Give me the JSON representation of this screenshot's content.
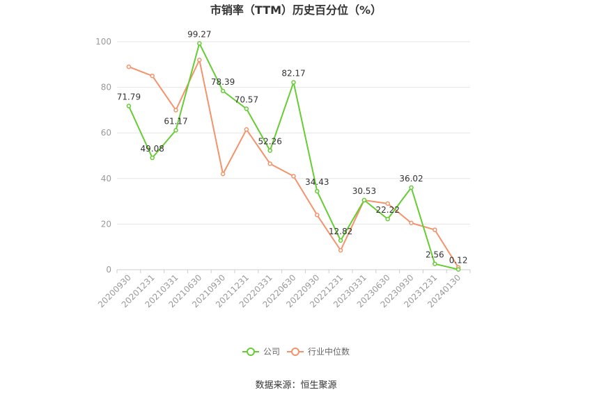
{
  "chart_data": {
    "type": "line",
    "title": "市销率（TTM）历史百分位（%）",
    "categories": [
      "20200930",
      "20201231",
      "20210331",
      "20210630",
      "20210930",
      "20211231",
      "20220331",
      "20220630",
      "20220930",
      "20221231",
      "20230331",
      "20230630",
      "20230930",
      "20231231",
      "20240130"
    ],
    "series": [
      {
        "name": "公司",
        "color": "#66cc33",
        "values": [
          71.79,
          49.08,
          61.17,
          99.27,
          78.39,
          70.57,
          52.26,
          82.17,
          34.43,
          12.82,
          30.53,
          22.22,
          36.02,
          2.56,
          0.12
        ],
        "labels": [
          "71.79",
          "49.08",
          "61.17",
          "99.27",
          "78.39",
          "70.57",
          "52.26",
          "82.17",
          "34.43",
          "12.82",
          "30.53",
          "22.22",
          "36.02",
          "2.56",
          "0.12"
        ]
      },
      {
        "name": "行业中位数",
        "color": "#f4936b",
        "values": [
          89,
          85,
          70,
          92,
          42,
          61.5,
          46.5,
          41,
          24,
          8.5,
          30.5,
          29,
          20.5,
          17.5,
          1
        ]
      }
    ],
    "ylim": [
      0,
      100
    ],
    "yticks": [
      "0",
      "20",
      "40",
      "60",
      "80",
      "100"
    ],
    "grid": true,
    "legend_position": "bottom"
  },
  "source_text": "数据来源：恒生聚源"
}
